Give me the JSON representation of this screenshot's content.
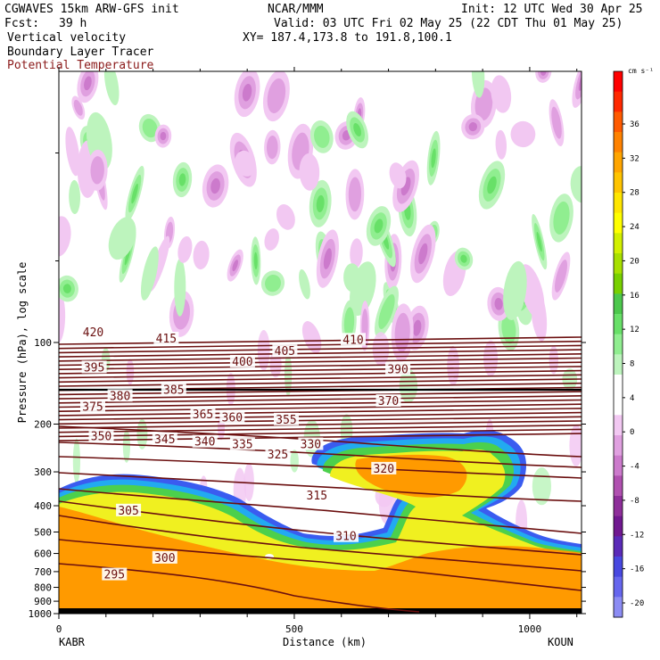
{
  "header": {
    "model": "CGWAVES 15km ARW-GFS init",
    "org": "NCAR/MMM",
    "init": "Init: 12 UTC Wed 30 Apr 25",
    "fcst_label": "Fcst:",
    "fcst_value": "39 h",
    "valid": "Valid: 03 UTC Fri 02 May 25 (22 CDT Thu 01 May 25)",
    "xy": "XY= 187.4,173.8 to 191.8,100.1",
    "fields": [
      "Vertical velocity",
      "Boundary Layer Tracer",
      "Potential Temperature"
    ]
  },
  "colors": {
    "theta_line": "#6b0f0f",
    "header_theta": "#8b1a1a"
  },
  "chart_data": {
    "type": "cross-section",
    "ylabel": "Pressure (hPa), log scale",
    "xlabel": "Distance (km)",
    "x_endpoints": [
      "KABR",
      "KOUN"
    ],
    "xlim": [
      0,
      1110
    ],
    "xticks": [
      0,
      500,
      1000
    ],
    "ylim": [
      1000,
      10
    ],
    "yticks": [
      1000,
      900,
      800,
      700,
      600,
      500,
      400,
      300,
      200,
      100
    ],
    "colorbar": {
      "unit": "cm s⁻¹",
      "labels": [
        36,
        32,
        28,
        24,
        20,
        16,
        12,
        8,
        4,
        0,
        -4,
        -8,
        -12,
        -16,
        -20
      ],
      "colors": [
        "#ff0000",
        "#ff2800",
        "#ff5a00",
        "#ff8200",
        "#ffa500",
        "#ffc400",
        "#ffe600",
        "#ffff00",
        "#d2f000",
        "#a8e000",
        "#78d000",
        "#4cc84c",
        "#68e068",
        "#90ee90",
        "#bdf4bd",
        "#ffffff",
        "#ffffff",
        "#f2c8f2",
        "#e0a0e0",
        "#cc7acc",
        "#b050b0",
        "#8e2e9a",
        "#701890",
        "#5a2ab8",
        "#4848e0",
        "#6666ee",
        "#8c8cf4"
      ]
    },
    "theta_labels": [
      {
        "v": "420",
        "x": 73,
        "p": 92
      },
      {
        "v": "415",
        "x": 228,
        "p": 97
      },
      {
        "v": "410",
        "x": 625,
        "p": 98
      },
      {
        "v": "405",
        "x": 480,
        "p": 108
      },
      {
        "v": "400",
        "x": 390,
        "p": 118
      },
      {
        "v": "395",
        "x": 75,
        "p": 124
      },
      {
        "v": "390",
        "x": 720,
        "p": 126
      },
      {
        "v": "385",
        "x": 244,
        "p": 150
      },
      {
        "v": "380",
        "x": 130,
        "p": 158
      },
      {
        "v": "375",
        "x": 72,
        "p": 173
      },
      {
        "v": "370",
        "x": 700,
        "p": 165
      },
      {
        "v": "365",
        "x": 306,
        "p": 185
      },
      {
        "v": "360",
        "x": 368,
        "p": 190
      },
      {
        "v": "355",
        "x": 483,
        "p": 193
      },
      {
        "v": "350",
        "x": 90,
        "p": 222
      },
      {
        "v": "345",
        "x": 225,
        "p": 228
      },
      {
        "v": "340",
        "x": 310,
        "p": 233
      },
      {
        "v": "335",
        "x": 390,
        "p": 238
      },
      {
        "v": "330",
        "x": 535,
        "p": 238
      },
      {
        "v": "325",
        "x": 465,
        "p": 260
      },
      {
        "v": "320",
        "x": 690,
        "p": 293
      },
      {
        "v": "315",
        "x": 548,
        "p": 368
      },
      {
        "v": "310",
        "x": 610,
        "p": 520
      },
      {
        "v": "305",
        "x": 148,
        "p": 418
      },
      {
        "v": "300",
        "x": 225,
        "p": 625
      },
      {
        "v": "295",
        "x": 118,
        "p": 720
      }
    ]
  }
}
